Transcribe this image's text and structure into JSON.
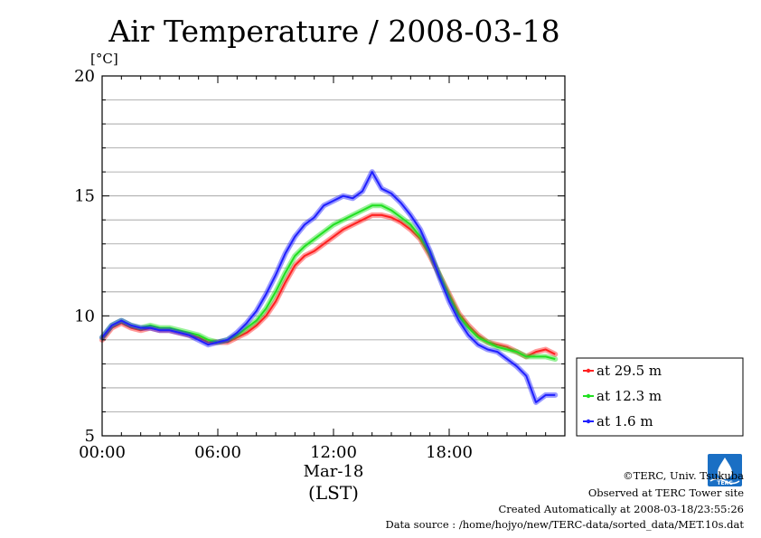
{
  "chart_data": {
    "type": "line",
    "title": "Air Temperature / 2008-03-18",
    "ylabel": "[°C]",
    "xlabel": "(LST)",
    "date_label": "Mar-18",
    "ylim": [
      5,
      20
    ],
    "y_ticks": [
      "5",
      "10",
      "15",
      "20"
    ],
    "xlim": [
      0,
      24
    ],
    "x_ticks": [
      "00:00",
      "06:00",
      "12:00",
      "18:00"
    ],
    "grid": true,
    "legend_position": "right-bottom-outside",
    "x": [
      0,
      0.5,
      1,
      1.5,
      2,
      2.5,
      3,
      3.5,
      4,
      4.5,
      5,
      5.5,
      6,
      6.5,
      7,
      7.5,
      8,
      8.5,
      9,
      9.5,
      10,
      10.5,
      11,
      11.5,
      12,
      12.5,
      13,
      13.5,
      14,
      14.5,
      15,
      15.5,
      16,
      16.5,
      17,
      17.5,
      18,
      18.5,
      19,
      19.5,
      20,
      20.5,
      21,
      21.5,
      22,
      22.5,
      23,
      23.5
    ],
    "series": [
      {
        "name": "at 29.5 m",
        "color": "#ff2020",
        "values": [
          9.0,
          9.5,
          9.7,
          9.5,
          9.4,
          9.5,
          9.4,
          9.4,
          9.3,
          9.2,
          9.1,
          8.9,
          8.9,
          8.9,
          9.1,
          9.3,
          9.6,
          10.0,
          10.6,
          11.4,
          12.1,
          12.5,
          12.7,
          13.0,
          13.3,
          13.6,
          13.8,
          14.0,
          14.2,
          14.2,
          14.1,
          13.9,
          13.6,
          13.2,
          12.5,
          11.7,
          10.9,
          10.1,
          9.6,
          9.2,
          8.9,
          8.8,
          8.7,
          8.5,
          8.3,
          8.5,
          8.6,
          8.4
        ]
      },
      {
        "name": "at 12.3 m",
        "color": "#20e020",
        "values": [
          9.1,
          9.6,
          9.8,
          9.6,
          9.5,
          9.6,
          9.5,
          9.5,
          9.4,
          9.3,
          9.2,
          9.0,
          8.9,
          9.0,
          9.2,
          9.5,
          9.8,
          10.3,
          11.0,
          11.8,
          12.5,
          12.9,
          13.2,
          13.5,
          13.8,
          14.0,
          14.2,
          14.4,
          14.6,
          14.6,
          14.4,
          14.1,
          13.8,
          13.3,
          12.6,
          11.7,
          10.8,
          10.0,
          9.5,
          9.1,
          8.9,
          8.7,
          8.6,
          8.5,
          8.3,
          8.3,
          8.3,
          8.2
        ]
      },
      {
        "name": "at 1.6 m",
        "color": "#2020ff",
        "values": [
          9.1,
          9.6,
          9.8,
          9.6,
          9.5,
          9.5,
          9.4,
          9.4,
          9.3,
          9.2,
          9.0,
          8.8,
          8.9,
          9.0,
          9.3,
          9.7,
          10.2,
          10.9,
          11.7,
          12.6,
          13.3,
          13.8,
          14.1,
          14.6,
          14.8,
          15.0,
          14.9,
          15.2,
          16.0,
          15.3,
          15.1,
          14.7,
          14.2,
          13.6,
          12.7,
          11.6,
          10.6,
          9.8,
          9.2,
          8.8,
          8.6,
          8.5,
          8.2,
          7.9,
          7.5,
          6.4,
          6.7,
          6.7
        ]
      }
    ]
  },
  "credits": {
    "copyright": "©TERC, Univ. Tsukuba",
    "site": "Observed at TERC Tower site",
    "created": "Created Automatically at 2008-03-18/23:55:26",
    "source": "Data source : /home/hojyo/new/TERC-data/sorted_data/MET.10s.dat",
    "logo_text": "TERC"
  }
}
